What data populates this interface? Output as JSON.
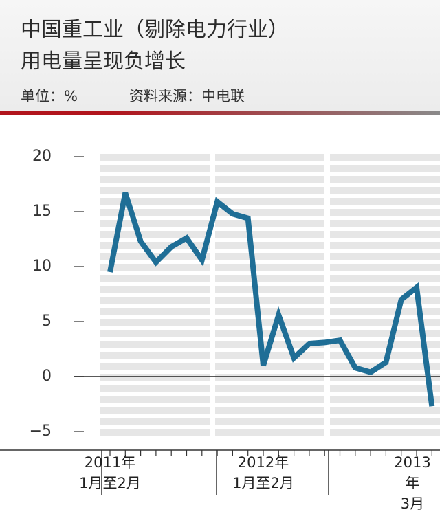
{
  "chart_data": {
    "type": "line",
    "title": [
      "中国重工业（剔除电力行业）",
      "用电量呈现负增长"
    ],
    "unit": "单位：%",
    "source": "资料来源：中电联",
    "categories": [
      "2011年\n1月至2月",
      null,
      null,
      null,
      null,
      null,
      null,
      null,
      null,
      null,
      "2012年\n1月至2月",
      null,
      null,
      null,
      null,
      null,
      null,
      null,
      null,
      null,
      null,
      "2013年\n3月"
    ],
    "series": [
      {
        "color": "#1f6e96",
        "values": [
          9.5,
          16.7,
          12.3,
          10.4,
          11.8,
          12.6,
          10.6,
          15.9,
          14.8,
          14.4,
          1.0,
          5.6,
          1.7,
          3.0,
          3.1,
          3.3,
          0.8,
          0.4,
          1.3,
          7.0,
          8.1,
          -2.7
        ]
      }
    ],
    "ylim": [
      -6.5,
      20.5
    ],
    "yticks": [
      {
        "value": -5,
        "label": "−5"
      },
      0,
      5,
      10,
      15,
      20
    ]
  }
}
